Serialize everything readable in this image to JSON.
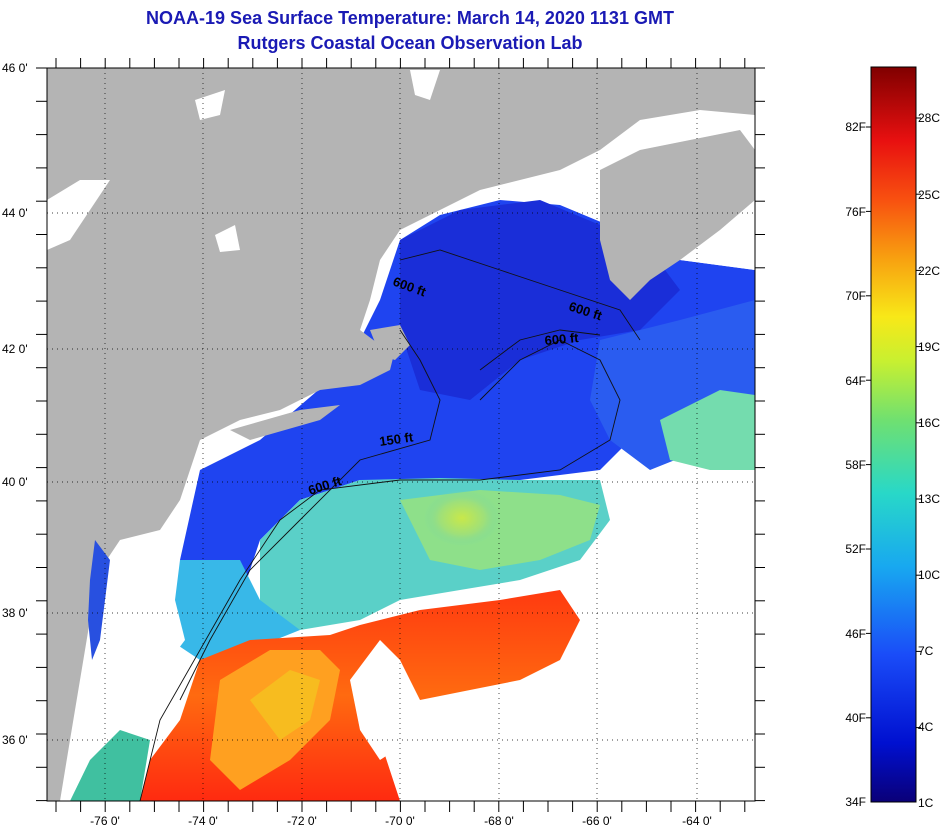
{
  "header": {
    "title": "NOAA-19 Sea Surface Temperature:  March 14, 2020 1131 GMT",
    "subtitle": "Rutgers Coastal Ocean Observation Lab"
  },
  "map": {
    "lat_labels": [
      "46 0'",
      "44 0'",
      "42 0'",
      "40 0'",
      "38 0'",
      "36 0'"
    ],
    "lon_labels": [
      "-76 0'",
      "-74 0'",
      "-72 0'",
      "-70 0'",
      "-68 0'",
      "-66 0'",
      "-64 0'"
    ],
    "contour_labels": [
      "600 ft",
      "600 ft",
      "600 ft",
      "150 ft",
      "600 ft"
    ],
    "colors": {
      "land": "#b4b4b4",
      "cloud": "#ffffff",
      "cold": "#1e3cf0",
      "warm": "#ff3000"
    }
  },
  "colorbar": {
    "fahrenheit": [
      "82F",
      "76F",
      "70F",
      "64F",
      "58F",
      "52F",
      "46F",
      "40F",
      "34F"
    ],
    "celsius": [
      "28C",
      "25C",
      "22C",
      "19C",
      "16C",
      "13C",
      "10C",
      "7C",
      "4C",
      "1C"
    ]
  }
}
